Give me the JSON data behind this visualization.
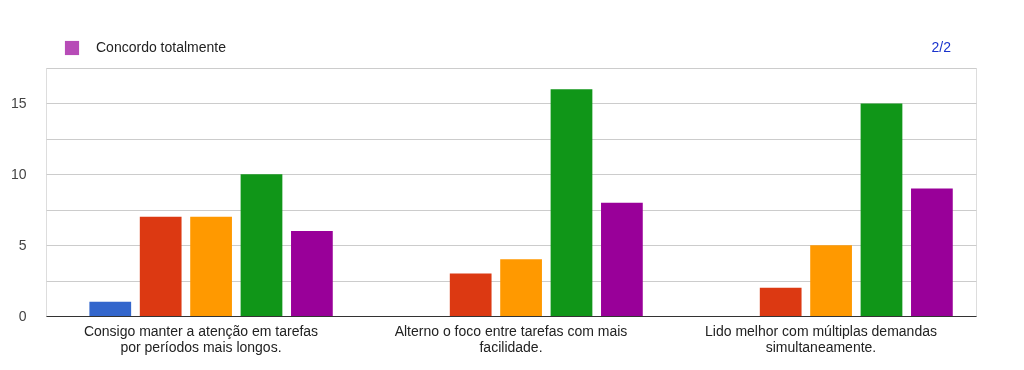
{
  "chart_data": {
    "type": "bar",
    "categories": [
      "Consigo manter a atenção em tarefas por períodos mais longos.",
      "Alterno o foco entre tarefas com mais facilidade.",
      "Lido melhor com múltiplas demandas simultaneamente."
    ],
    "series": [
      {
        "color": "#3366cc",
        "values": [
          1,
          0,
          0
        ]
      },
      {
        "color": "#dc3912",
        "values": [
          7,
          3,
          2
        ]
      },
      {
        "color": "#ff9900",
        "values": [
          7,
          4,
          5
        ]
      },
      {
        "color": "#109618",
        "values": [
          10,
          16,
          15
        ]
      },
      {
        "name": "Concordo totalmente",
        "color": "#990099",
        "values": [
          6,
          8,
          9
        ]
      }
    ],
    "ylim": [
      0,
      17.5
    ],
    "yticks": [
      0,
      {
        "value": 2.5,
        "label": null
      },
      5,
      {
        "value": 7.5,
        "label": null
      },
      10,
      {
        "value": 12.5,
        "label": null
      },
      15,
      {
        "value": 17.5,
        "label": null
      }
    ],
    "grid": "y",
    "legend": "top left",
    "annotations": [
      "2/2"
    ]
  }
}
